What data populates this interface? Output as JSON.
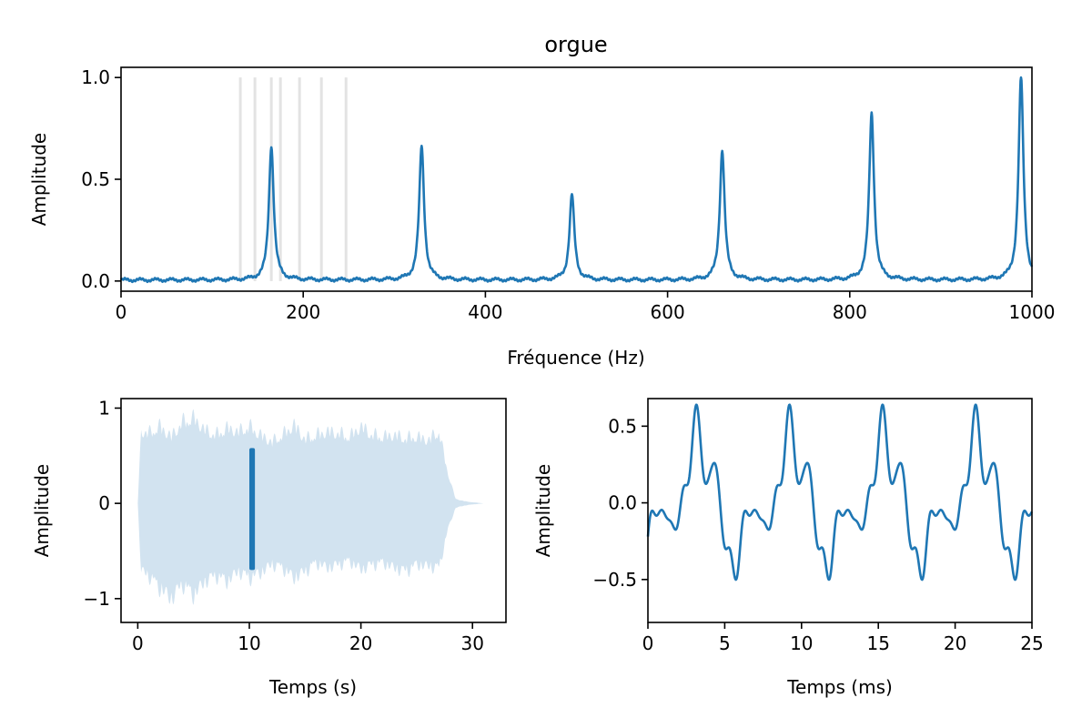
{
  "colors": {
    "line": "#1f77b4",
    "envelope": "#d2e3f0",
    "note_markers": "#e3e3e3"
  },
  "chart_data": [
    {
      "id": "spectrum",
      "type": "line",
      "title": "orgue",
      "xlabel": "Fréquence (Hz)",
      "ylabel": "Amplitude",
      "xlim": [
        0,
        1000
      ],
      "ylim": [
        -0.05,
        1.05
      ],
      "xticks": [
        0,
        200,
        400,
        600,
        800,
        1000
      ],
      "xtick_labels": [
        "0",
        "200",
        "400",
        "600",
        "800",
        "1000"
      ],
      "yticks": [
        0.0,
        0.5,
        1.0
      ],
      "ytick_labels": [
        "0.0",
        "0.5",
        "1.0"
      ],
      "grid": false,
      "note_markers": [
        131,
        147,
        165,
        175,
        196,
        220,
        247
      ],
      "baseline": 0.005,
      "peaks": [
        {
          "x": 165,
          "y": 0.66
        },
        {
          "x": 330,
          "y": 0.66
        },
        {
          "x": 495,
          "y": 0.42
        },
        {
          "x": 660,
          "y": 0.64
        },
        {
          "x": 824,
          "y": 0.82
        },
        {
          "x": 988,
          "y": 1.0
        }
      ]
    },
    {
      "id": "waveform",
      "type": "area",
      "xlabel": "Temps (s)",
      "ylabel": "Amplitude",
      "xlim": [
        -1.5,
        33
      ],
      "ylim": [
        -1.25,
        1.1
      ],
      "xticks": [
        0,
        10,
        20,
        30
      ],
      "xtick_labels": [
        "0",
        "10",
        "20",
        "30"
      ],
      "yticks": [
        -1,
        0,
        1
      ],
      "ytick_labels": [
        "−1",
        "0",
        "1"
      ],
      "grid": false,
      "envelope_t": [
        0,
        0.3,
        1,
        2,
        3,
        4,
        5,
        6,
        7,
        8,
        9,
        10,
        11,
        12,
        13,
        14,
        15,
        16,
        17,
        18,
        19,
        20,
        21,
        22,
        23,
        24,
        25,
        26,
        27,
        27.8,
        28.5,
        29.5,
        31
      ],
      "envelope_top": [
        0,
        0.85,
        0.82,
        0.9,
        0.78,
        0.95,
        1.0,
        0.86,
        0.8,
        0.88,
        0.84,
        0.9,
        0.8,
        0.72,
        0.8,
        0.92,
        0.75,
        0.8,
        0.84,
        0.82,
        0.78,
        0.9,
        0.8,
        0.78,
        0.8,
        0.76,
        0.78,
        0.74,
        0.84,
        0.35,
        0.05,
        0.02,
        0.0
      ],
      "envelope_bottom": [
        0,
        -0.8,
        -0.85,
        -1.0,
        -1.12,
        -0.95,
        -1.08,
        -0.92,
        -0.85,
        -0.92,
        -0.8,
        -0.88,
        -0.82,
        -0.72,
        -0.76,
        -0.88,
        -0.8,
        -0.7,
        -0.76,
        -0.72,
        -0.68,
        -0.78,
        -0.72,
        -0.7,
        -0.76,
        -0.8,
        -0.72,
        -0.74,
        -0.76,
        -0.3,
        -0.05,
        -0.02,
        0.0
      ],
      "highlight": {
        "start": 10.0,
        "end": 10.5,
        "ymin": -0.7,
        "ymax": 0.58
      }
    },
    {
      "id": "zoom",
      "type": "line",
      "xlabel": "Temps (ms)",
      "ylabel": "Amplitude",
      "xlim": [
        0,
        25
      ],
      "ylim": [
        -0.78,
        0.68
      ],
      "xticks": [
        0,
        5,
        10,
        15,
        20,
        25
      ],
      "xtick_labels": [
        "0",
        "5",
        "10",
        "15",
        "20",
        "25"
      ],
      "yticks": [
        -0.5,
        0.0,
        0.5
      ],
      "ytick_labels": [
        "−0.5",
        "0.0",
        "0.5"
      ],
      "grid": false,
      "period_ms": 6.06
    }
  ]
}
